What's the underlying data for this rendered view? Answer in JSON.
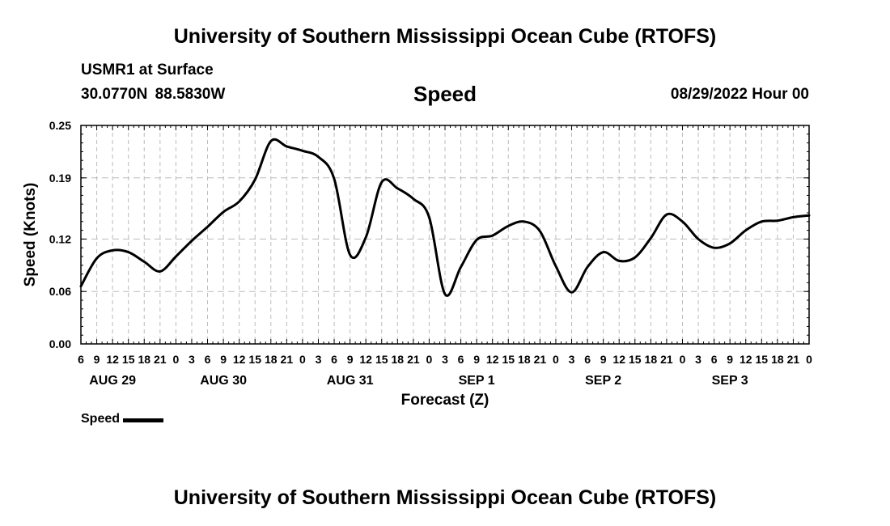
{
  "header": {
    "title": "University of Southern Mississippi Ocean Cube (RTOFS)",
    "station": "USMR1 at Surface",
    "coordinates": "30.0770N  88.5830W",
    "variable": "Speed",
    "datetime": "08/29/2022 Hour 00"
  },
  "footer": {
    "title": "University of Southern Mississippi Ocean Cube (RTOFS)"
  },
  "legend": {
    "label": "Speed",
    "color": "#000000"
  },
  "chart_data": {
    "type": "line",
    "title": "Speed",
    "xlabel": "Forecast (Z)",
    "ylabel": "Speed (Knots)",
    "x_unit": "hours from Aug 29 00Z",
    "xlim": [
      6,
      144
    ],
    "ylim": [
      0,
      0.25
    ],
    "yticks": [
      0.0,
      0.06,
      0.12,
      0.19,
      0.25
    ],
    "ytick_labels": [
      "0.00",
      "0.06",
      "0.12",
      "0.19",
      "0.25"
    ],
    "xticks": [
      {
        "x": 6,
        "label": "6"
      },
      {
        "x": 9,
        "label": "9"
      },
      {
        "x": 12,
        "label": "12"
      },
      {
        "x": 15,
        "label": "15"
      },
      {
        "x": 18,
        "label": "18"
      },
      {
        "x": 21,
        "label": "21"
      },
      {
        "x": 24,
        "label": "0"
      },
      {
        "x": 27,
        "label": "3"
      },
      {
        "x": 30,
        "label": "6"
      },
      {
        "x": 33,
        "label": "9"
      },
      {
        "x": 36,
        "label": "12"
      },
      {
        "x": 39,
        "label": "15"
      },
      {
        "x": 42,
        "label": "18"
      },
      {
        "x": 45,
        "label": "21"
      },
      {
        "x": 48,
        "label": "0"
      },
      {
        "x": 51,
        "label": "3"
      },
      {
        "x": 54,
        "label": "6"
      },
      {
        "x": 57,
        "label": "9"
      },
      {
        "x": 60,
        "label": "12"
      },
      {
        "x": 63,
        "label": "15"
      },
      {
        "x": 66,
        "label": "18"
      },
      {
        "x": 69,
        "label": "21"
      },
      {
        "x": 72,
        "label": "0"
      },
      {
        "x": 75,
        "label": "3"
      },
      {
        "x": 78,
        "label": "6"
      },
      {
        "x": 81,
        "label": "9"
      },
      {
        "x": 84,
        "label": "12"
      },
      {
        "x": 87,
        "label": "15"
      },
      {
        "x": 90,
        "label": "18"
      },
      {
        "x": 93,
        "label": "21"
      },
      {
        "x": 96,
        "label": "0"
      },
      {
        "x": 99,
        "label": "3"
      },
      {
        "x": 102,
        "label": "6"
      },
      {
        "x": 105,
        "label": "9"
      },
      {
        "x": 108,
        "label": "12"
      },
      {
        "x": 111,
        "label": "15"
      },
      {
        "x": 114,
        "label": "18"
      },
      {
        "x": 117,
        "label": "21"
      },
      {
        "x": 120,
        "label": "0"
      },
      {
        "x": 123,
        "label": "3"
      },
      {
        "x": 126,
        "label": "6"
      },
      {
        "x": 129,
        "label": "9"
      },
      {
        "x": 132,
        "label": "12"
      },
      {
        "x": 135,
        "label": "15"
      },
      {
        "x": 138,
        "label": "18"
      },
      {
        "x": 141,
        "label": "21"
      },
      {
        "x": 144,
        "label": "0"
      }
    ],
    "day_labels": [
      {
        "x": 12,
        "label": "AUG 29"
      },
      {
        "x": 33,
        "label": "AUG 30"
      },
      {
        "x": 57,
        "label": "AUG 31"
      },
      {
        "x": 81,
        "label": "SEP 1"
      },
      {
        "x": 105,
        "label": "SEP 2"
      },
      {
        "x": 129,
        "label": "SEP 3"
      }
    ],
    "grid": true,
    "series": [
      {
        "name": "Speed",
        "x": [
          6,
          9,
          12,
          15,
          18,
          21,
          24,
          27,
          30,
          33,
          36,
          39,
          42,
          45,
          48,
          51,
          54,
          57,
          60,
          63,
          66,
          69,
          72,
          75,
          78,
          81,
          84,
          87,
          90,
          93,
          96,
          99,
          102,
          105,
          108,
          111,
          114,
          117,
          120,
          123,
          126,
          129,
          132,
          135,
          138,
          141,
          144
        ],
        "values": [
          0.066,
          0.098,
          0.107,
          0.105,
          0.094,
          0.083,
          0.1,
          0.118,
          0.134,
          0.151,
          0.163,
          0.188,
          0.232,
          0.226,
          0.221,
          0.214,
          0.189,
          0.102,
          0.122,
          0.185,
          0.178,
          0.166,
          0.145,
          0.057,
          0.088,
          0.119,
          0.124,
          0.135,
          0.14,
          0.129,
          0.089,
          0.059,
          0.088,
          0.105,
          0.095,
          0.099,
          0.121,
          0.148,
          0.14,
          0.12,
          0.11,
          0.115,
          0.13,
          0.14,
          0.141,
          0.145,
          0.147
        ]
      }
    ]
  }
}
